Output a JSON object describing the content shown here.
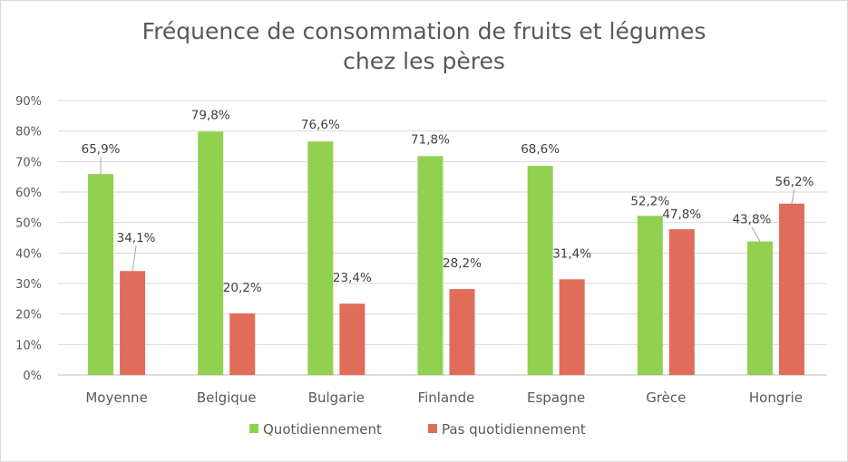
{
  "chart_data": {
    "type": "bar",
    "title_line1": "Fréquence de consommation de fruits et légumes",
    "title_line2": "chez les pères",
    "categories": [
      "Moyenne",
      "Belgique",
      "Bulgarie",
      "Finlande",
      "Espagne",
      "Grèce",
      "Hongrie"
    ],
    "series": [
      {
        "name": "Quotidiennement",
        "color": "#92d050",
        "values": [
          65.9,
          79.8,
          76.6,
          71.8,
          68.6,
          52.2,
          43.8
        ],
        "labels": [
          "65,9%",
          "79,8%",
          "76,6%",
          "71,8%",
          "68,6%",
          "52,2%",
          "43,8%"
        ]
      },
      {
        "name": "Pas quotidiennement",
        "color": "#e06c5a",
        "values": [
          34.1,
          20.2,
          23.4,
          28.2,
          31.4,
          47.8,
          56.2
        ],
        "labels": [
          "34,1%",
          "20,2%",
          "23,4%",
          "28,2%",
          "31,4%",
          "47,8%",
          "56,2%"
        ]
      }
    ],
    "y_ticks": [
      "0%",
      "10%",
      "20%",
      "30%",
      "40%",
      "50%",
      "60%",
      "70%",
      "80%",
      "90%"
    ],
    "ylim": [
      0,
      90
    ],
    "grid": true,
    "legend_position": "bottom"
  }
}
